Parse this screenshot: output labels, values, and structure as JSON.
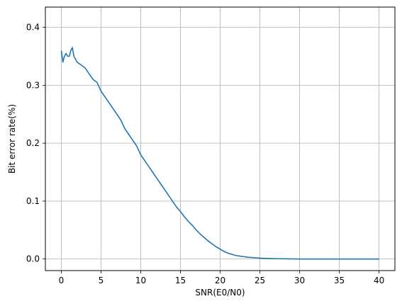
{
  "chart_data": {
    "type": "line",
    "title": "",
    "xlabel": "SNR(E0/N0)",
    "ylabel": "Bit error rate(%)",
    "xlim": [
      -2,
      42
    ],
    "ylim": [
      -0.02,
      0.435
    ],
    "xticks": [
      0,
      5,
      10,
      15,
      20,
      25,
      30,
      35,
      40
    ],
    "xtick_labels": [
      "0",
      "5",
      "10",
      "15",
      "20",
      "25",
      "30",
      "35",
      "40"
    ],
    "yticks": [
      0.0,
      0.1,
      0.2,
      0.3,
      0.4
    ],
    "ytick_labels": [
      "0.0",
      "0.1",
      "0.2",
      "0.3",
      "0.4"
    ],
    "grid": true,
    "legend": "none",
    "series": [
      {
        "color": "#1f77b4",
        "x": [
          0,
          0.2,
          0.4,
          0.6,
          0.8,
          1.0,
          1.2,
          1.4,
          1.6,
          1.8,
          2.0,
          2.5,
          3.0,
          3.5,
          4.0,
          4.5,
          5.0,
          5.5,
          6.0,
          6.5,
          7.0,
          7.5,
          8.0,
          8.5,
          9.0,
          9.5,
          10.0,
          10.5,
          11.0,
          11.5,
          12.0,
          12.5,
          13.0,
          13.5,
          14.0,
          14.5,
          15.0,
          15.5,
          16.0,
          16.5,
          17.0,
          17.5,
          18.0,
          18.5,
          19.0,
          19.5,
          20.0,
          20.5,
          21.0,
          21.5,
          22.0,
          22.5,
          23.0,
          23.5,
          24.0,
          24.5,
          25.0,
          25.5,
          26.0,
          26.5,
          27.0,
          27.5,
          28.0,
          28.5,
          29.0,
          29.5,
          30.0,
          32.0,
          34.0,
          36.0,
          38.0,
          40.0
        ],
        "y": [
          0.36,
          0.34,
          0.35,
          0.355,
          0.35,
          0.35,
          0.36,
          0.365,
          0.35,
          0.345,
          0.34,
          0.335,
          0.33,
          0.32,
          0.31,
          0.305,
          0.29,
          0.28,
          0.27,
          0.26,
          0.25,
          0.24,
          0.225,
          0.215,
          0.205,
          0.195,
          0.18,
          0.17,
          0.16,
          0.15,
          0.14,
          0.13,
          0.12,
          0.11,
          0.1,
          0.09,
          0.082,
          0.073,
          0.065,
          0.058,
          0.05,
          0.043,
          0.037,
          0.031,
          0.026,
          0.021,
          0.017,
          0.013,
          0.01,
          0.008,
          0.006,
          0.005,
          0.004,
          0.003,
          0.0025,
          0.002,
          0.0015,
          0.0012,
          0.001,
          0.0008,
          0.0006,
          0.0005,
          0.0004,
          0.0003,
          0.0002,
          0.0001,
          0.0,
          0.0,
          0.0,
          0.0,
          0.0,
          0.0
        ]
      }
    ]
  }
}
